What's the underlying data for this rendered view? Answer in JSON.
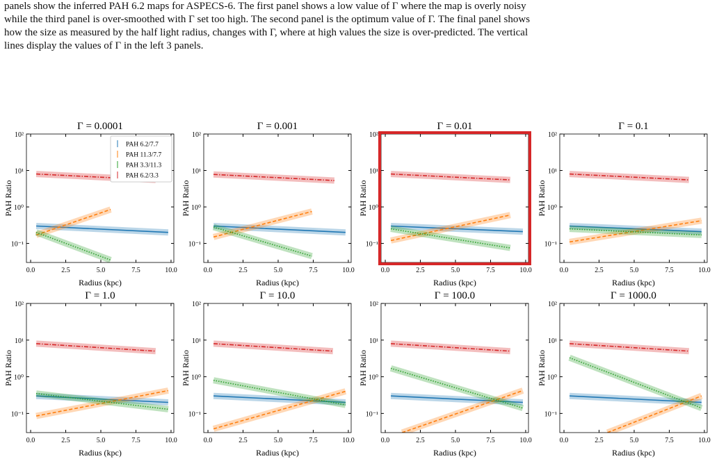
{
  "caption": [
    "panels show the inferred PAH 6.2 maps for ASPECS-6. The first panel shows a low value of Γ where the map is overly noisy",
    "while the third panel is over-smoothed with Γ set too high. The second panel is the optimum value of Γ. The final panel shows",
    "how the size as measured by the half light radius, changes with Γ, where at high values the size is over-predicted. The vertical",
    "lines display the values of Γ in the left 3 panels."
  ],
  "chart_data": [
    {
      "type": "line",
      "title": "Γ = 0.0001",
      "xlabel": "Radius (kpc)",
      "ylabel": "PAH Ratio",
      "log_y": true,
      "legend": "upper right",
      "highlight": false,
      "xlim": [
        -0.3,
        10.2
      ],
      "ylim": [
        0.03,
        100
      ],
      "xticks": [
        {
          "value": 0,
          "label": "0.0"
        },
        2.5,
        {
          "value": 5,
          "label": "5.0"
        },
        7.5,
        {
          "value": 10,
          "label": "10.0"
        }
      ],
      "yticks": [
        {
          "value": 0.1,
          "label": "10⁻¹"
        },
        {
          "value": 1,
          "label": "10⁰"
        },
        {
          "value": 10,
          "label": "10¹"
        },
        {
          "value": 100,
          "label": "10²"
        }
      ],
      "series": [
        {
          "name": "PAH 6.2/7.7",
          "color": "#1f77b4",
          "linestyle": "solid",
          "x": [
            0.4,
            9.8
          ],
          "values": [
            0.3,
            0.2
          ]
        },
        {
          "name": "PAH 11.3/7.7",
          "color": "#ff7f0e",
          "linestyle": "dashed",
          "x": [
            0.4,
            5.7
          ],
          "values": [
            0.17,
            0.85
          ]
        },
        {
          "name": "PAH 3.3/11.3",
          "color": "#2ca02c",
          "linestyle": "dotted",
          "x": [
            0.4,
            5.7
          ],
          "values": [
            0.2,
            0.035
          ]
        },
        {
          "name": "PAH 6.2/3.3",
          "color": "#d62728",
          "linestyle": "dashdot",
          "x": [
            0.4,
            8.9
          ],
          "values": [
            8,
            5.5
          ]
        }
      ]
    },
    {
      "type": "line",
      "title": "Γ = 0.001",
      "xlabel": "Radius (kpc)",
      "ylabel": "PAH Ratio",
      "log_y": true,
      "highlight": false,
      "xlim": [
        -0.3,
        10.2
      ],
      "ylim": [
        0.03,
        100
      ],
      "xticks": [
        {
          "value": 0,
          "label": "0.0"
        },
        2.5,
        {
          "value": 5,
          "label": "5.0"
        },
        7.5,
        {
          "value": 10,
          "label": "10.0"
        }
      ],
      "yticks": [
        {
          "value": 0.1,
          "label": "10⁻¹"
        },
        {
          "value": 1,
          "label": "10⁰"
        },
        {
          "value": 10,
          "label": "10¹"
        },
        {
          "value": 100,
          "label": "10²"
        }
      ],
      "series": [
        {
          "color": "#1f77b4",
          "linestyle": "solid",
          "x": [
            0.4,
            9.8
          ],
          "values": [
            0.3,
            0.2
          ]
        },
        {
          "color": "#ff7f0e",
          "linestyle": "dashed",
          "x": [
            0.4,
            7.4
          ],
          "values": [
            0.15,
            0.75
          ]
        },
        {
          "color": "#2ca02c",
          "linestyle": "dotted",
          "x": [
            0.4,
            7.4
          ],
          "values": [
            0.28,
            0.045
          ]
        },
        {
          "color": "#d62728",
          "linestyle": "dashdot",
          "x": [
            0.4,
            9.0
          ],
          "values": [
            7.8,
            5.3
          ]
        }
      ]
    },
    {
      "type": "line",
      "title": "Γ = 0.01",
      "xlabel": "Radius (kpc)",
      "ylabel": "PAH Ratio",
      "log_y": true,
      "highlight": true,
      "xlim": [
        -0.3,
        10.2
      ],
      "ylim": [
        0.03,
        100
      ],
      "xticks": [
        {
          "value": 0,
          "label": "0.0"
        },
        2.5,
        {
          "value": 5,
          "label": "5.0"
        },
        7.5,
        {
          "value": 10,
          "label": "10.0"
        }
      ],
      "yticks": [
        {
          "value": 0.1,
          "label": "10⁻¹"
        },
        {
          "value": 1,
          "label": "10⁰"
        },
        {
          "value": 10,
          "label": "10¹"
        },
        {
          "value": 100,
          "label": "10²"
        }
      ],
      "series": [
        {
          "color": "#1f77b4",
          "linestyle": "solid",
          "x": [
            0.4,
            9.8
          ],
          "values": [
            0.3,
            0.21
          ]
        },
        {
          "color": "#ff7f0e",
          "linestyle": "dashed",
          "x": [
            0.4,
            8.9
          ],
          "values": [
            0.12,
            0.6
          ]
        },
        {
          "color": "#2ca02c",
          "linestyle": "dotted",
          "x": [
            0.4,
            8.9
          ],
          "values": [
            0.25,
            0.075
          ]
        },
        {
          "color": "#d62728",
          "linestyle": "dashdot",
          "x": [
            0.4,
            8.9
          ],
          "values": [
            8,
            5.5
          ]
        }
      ]
    },
    {
      "type": "line",
      "title": "Γ = 0.1",
      "xlabel": "Radius (kpc)",
      "ylabel": "PAH Ratio",
      "log_y": true,
      "highlight": false,
      "xlim": [
        -0.3,
        10.2
      ],
      "ylim": [
        0.03,
        100
      ],
      "xticks": [
        {
          "value": 0,
          "label": "0.0"
        },
        2.5,
        {
          "value": 5,
          "label": "5.0"
        },
        7.5,
        {
          "value": 10,
          "label": "10.0"
        }
      ],
      "yticks": [
        {
          "value": 0.1,
          "label": "10⁻¹"
        },
        {
          "value": 1,
          "label": "10⁰"
        },
        {
          "value": 10,
          "label": "10¹"
        },
        {
          "value": 100,
          "label": "10²"
        }
      ],
      "series": [
        {
          "color": "#1f77b4",
          "linestyle": "solid",
          "x": [
            0.4,
            9.8
          ],
          "values": [
            0.3,
            0.21
          ]
        },
        {
          "color": "#ff7f0e",
          "linestyle": "dashed",
          "x": [
            0.4,
            9.8
          ],
          "values": [
            0.11,
            0.42
          ]
        },
        {
          "color": "#2ca02c",
          "linestyle": "dotted",
          "x": [
            0.4,
            9.8
          ],
          "values": [
            0.25,
            0.17
          ]
        },
        {
          "color": "#d62728",
          "linestyle": "dashdot",
          "x": [
            0.4,
            8.9
          ],
          "values": [
            8,
            5.5
          ]
        }
      ]
    },
    {
      "type": "line",
      "title": "Γ = 1.0",
      "xlabel": "Radius (kpc)",
      "ylabel": "PAH Ratio",
      "log_y": true,
      "highlight": false,
      "xlim": [
        -0.3,
        10.2
      ],
      "ylim": [
        0.03,
        100
      ],
      "xticks": [
        {
          "value": 0,
          "label": "0.0"
        },
        2.5,
        {
          "value": 5,
          "label": "5.0"
        },
        7.5,
        {
          "value": 10,
          "label": "10.0"
        }
      ],
      "yticks": [
        {
          "value": 0.1,
          "label": "10⁻¹"
        },
        {
          "value": 1,
          "label": "10⁰"
        },
        {
          "value": 10,
          "label": "10¹"
        },
        {
          "value": 100,
          "label": "10²"
        }
      ],
      "series": [
        {
          "color": "#1f77b4",
          "linestyle": "solid",
          "x": [
            0.4,
            9.8
          ],
          "values": [
            0.3,
            0.2
          ]
        },
        {
          "color": "#ff7f0e",
          "linestyle": "dashed",
          "x": [
            0.4,
            9.8
          ],
          "values": [
            0.085,
            0.42
          ]
        },
        {
          "color": "#2ca02c",
          "linestyle": "dotted",
          "x": [
            0.4,
            9.8
          ],
          "values": [
            0.35,
            0.13
          ]
        },
        {
          "color": "#d62728",
          "linestyle": "dashdot",
          "x": [
            0.4,
            8.9
          ],
          "values": [
            8,
            5
          ]
        }
      ]
    },
    {
      "type": "line",
      "title": "Γ = 10.0",
      "xlabel": "Radius (kpc)",
      "ylabel": "PAH Ratio",
      "log_y": true,
      "highlight": false,
      "xlim": [
        -0.3,
        10.2
      ],
      "ylim": [
        0.03,
        100
      ],
      "xticks": [
        {
          "value": 0,
          "label": "0.0"
        },
        2.5,
        {
          "value": 5,
          "label": "5.0"
        },
        7.5,
        {
          "value": 10,
          "label": "10.0"
        }
      ],
      "yticks": [
        {
          "value": 0.1,
          "label": "10⁻¹"
        },
        {
          "value": 1,
          "label": "10⁰"
        },
        {
          "value": 10,
          "label": "10¹"
        },
        {
          "value": 100,
          "label": "10²"
        }
      ],
      "series": [
        {
          "color": "#1f77b4",
          "linestyle": "solid",
          "x": [
            0.4,
            9.8
          ],
          "values": [
            0.3,
            0.2
          ]
        },
        {
          "color": "#ff7f0e",
          "linestyle": "dashed",
          "x": [
            0.4,
            9.8
          ],
          "values": [
            0.038,
            0.4
          ]
        },
        {
          "color": "#2ca02c",
          "linestyle": "dotted",
          "x": [
            0.4,
            9.8
          ],
          "values": [
            0.8,
            0.17
          ]
        },
        {
          "color": "#d62728",
          "linestyle": "dashdot",
          "x": [
            0.4,
            8.9
          ],
          "values": [
            8,
            5
          ]
        }
      ]
    },
    {
      "type": "line",
      "title": "Γ = 100.0",
      "xlabel": "Radius (kpc)",
      "ylabel": "PAH Ratio",
      "log_y": true,
      "highlight": false,
      "xlim": [
        -0.3,
        10.2
      ],
      "ylim": [
        0.03,
        100
      ],
      "xticks": [
        {
          "value": 0,
          "label": "0.0"
        },
        2.5,
        {
          "value": 5,
          "label": "5.0"
        },
        7.5,
        {
          "value": 10,
          "label": "10.0"
        }
      ],
      "yticks": [
        {
          "value": 0.1,
          "label": "10⁻¹"
        },
        {
          "value": 1,
          "label": "10⁰"
        },
        {
          "value": 10,
          "label": "10¹"
        },
        {
          "value": 100,
          "label": "10²"
        }
      ],
      "series": [
        {
          "color": "#1f77b4",
          "linestyle": "solid",
          "x": [
            0.4,
            9.8
          ],
          "values": [
            0.3,
            0.2
          ]
        },
        {
          "color": "#ff7f0e",
          "linestyle": "dashed",
          "x": [
            1.2,
            9.8
          ],
          "values": [
            0.03,
            0.42
          ]
        },
        {
          "color": "#2ca02c",
          "linestyle": "dotted",
          "x": [
            0.4,
            9.8
          ],
          "values": [
            1.7,
            0.14
          ]
        },
        {
          "color": "#d62728",
          "linestyle": "dashdot",
          "x": [
            0.4,
            8.9
          ],
          "values": [
            8,
            5
          ]
        }
      ]
    },
    {
      "type": "line",
      "title": "Γ = 1000.0",
      "xlabel": "Radius (kpc)",
      "ylabel": "PAH Ratio",
      "log_y": true,
      "highlight": false,
      "xlim": [
        -0.3,
        10.2
      ],
      "ylim": [
        0.03,
        100
      ],
      "xticks": [
        {
          "value": 0,
          "label": "0.0"
        },
        2.5,
        {
          "value": 5,
          "label": "5.0"
        },
        7.5,
        {
          "value": 10,
          "label": "10.0"
        }
      ],
      "yticks": [
        {
          "value": 0.1,
          "label": "10⁻¹"
        },
        {
          "value": 1,
          "label": "10⁰"
        },
        {
          "value": 10,
          "label": "10¹"
        },
        {
          "value": 100,
          "label": "10²"
        }
      ],
      "series": [
        {
          "color": "#1f77b4",
          "linestyle": "solid",
          "x": [
            0.4,
            9.8
          ],
          "values": [
            0.3,
            0.2
          ]
        },
        {
          "color": "#ff7f0e",
          "linestyle": "dashed",
          "x": [
            3.1,
            9.8
          ],
          "values": [
            0.03,
            0.3
          ]
        },
        {
          "color": "#2ca02c",
          "linestyle": "dotted",
          "x": [
            0.4,
            9.8
          ],
          "values": [
            3.3,
            0.14
          ]
        },
        {
          "color": "#d62728",
          "linestyle": "dashdot",
          "x": [
            0.4,
            8.9
          ],
          "values": [
            8,
            5
          ]
        }
      ]
    }
  ]
}
